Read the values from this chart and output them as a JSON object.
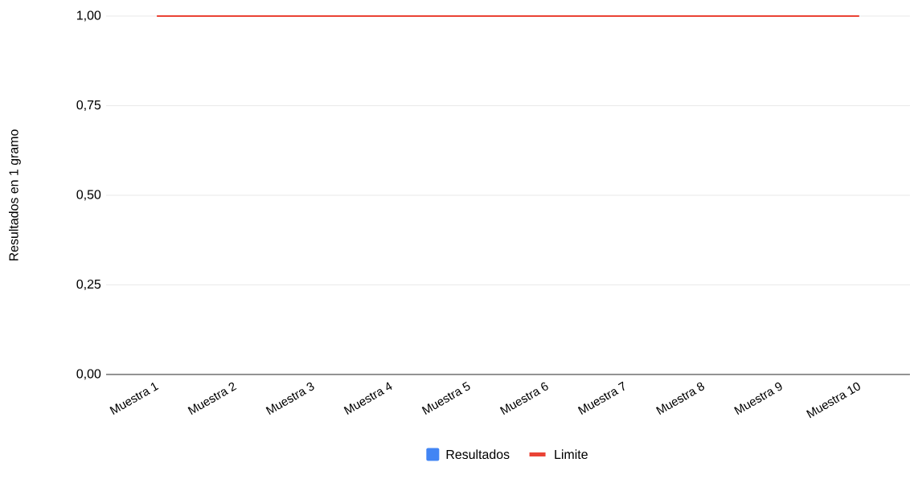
{
  "chart_data": {
    "type": "bar",
    "ylabel": "Resultados en 1 gramo",
    "categories": [
      "Muestra 1",
      "Muestra 2",
      "Muestra 3",
      "Muestra 4",
      "Muestra 5",
      "Muestra 6",
      "Muestra 7",
      "Muestra 8",
      "Muestra 9",
      "Muestra 10"
    ],
    "series": [
      {
        "name": "Resultados",
        "color": "#4285f4",
        "values": [
          0,
          0,
          0,
          0,
          0,
          0,
          0,
          0,
          0,
          0
        ]
      },
      {
        "name": "Limite",
        "type": "line",
        "color": "#ea4335",
        "values": [
          1,
          1,
          1,
          1,
          1,
          1,
          1,
          1,
          1,
          1
        ]
      }
    ],
    "ylim": [
      0,
      1
    ],
    "yticks": [
      {
        "value": 0,
        "label": "0,00"
      },
      {
        "value": 0.25,
        "label": "0,25"
      },
      {
        "value": 0.5,
        "label": "0,50"
      },
      {
        "value": 0.75,
        "label": "0,75"
      },
      {
        "value": 1,
        "label": "1,00"
      }
    ],
    "grid": "y",
    "legend": "bottom",
    "marker": "none"
  }
}
